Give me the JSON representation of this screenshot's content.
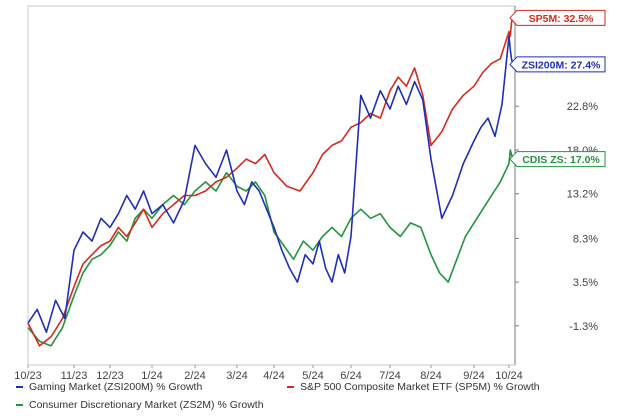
{
  "chart_data": {
    "type": "line",
    "title": "",
    "xlabel": "",
    "ylabel": "",
    "x_labels": [
      "10/23",
      "11/23",
      "12/23",
      "1/24",
      "2/24",
      "3/24",
      "4/24",
      "5/24",
      "6/24",
      "7/24",
      "8/24",
      "9/24",
      "10/24"
    ],
    "y_ticks": [
      -1.3,
      3.5,
      8.3,
      13.2,
      18.0,
      22.8
    ],
    "y_tick_labels": [
      "-1.3%",
      "3.5%",
      "8.3%",
      "13.2%",
      "18.0%",
      "22.8%"
    ],
    "ylim": [
      -5.6,
      33.8
    ],
    "grid": false,
    "legend_position": "bottom",
    "series": [
      {
        "name": "Gaming Market (ZSI200M) % Growth",
        "key": "ZSI200M",
        "end_label": "ZSI200M: 27.4%",
        "color": "#1f2fb5",
        "points": [
          [
            "10/23",
            -1.0
          ],
          [
            "10/23",
            0.5
          ],
          [
            "10/23",
            -2.0
          ],
          [
            "10/23",
            1.5
          ],
          [
            "10/23",
            -0.5
          ],
          [
            "11/23",
            7.0
          ],
          [
            "11/23",
            9.0
          ],
          [
            "11/23",
            8.0
          ],
          [
            "11/23",
            10.5
          ],
          [
            "12/23",
            9.5
          ],
          [
            "12/23",
            11.0
          ],
          [
            "12/23",
            13.0
          ],
          [
            "12/23",
            11.5
          ],
          [
            "12/23",
            13.5
          ],
          [
            "1/24",
            11.0
          ],
          [
            "1/24",
            12.0
          ],
          [
            "1/24",
            10.0
          ],
          [
            "1/24",
            12.5
          ],
          [
            "2/24",
            18.5
          ],
          [
            "2/24",
            16.5
          ],
          [
            "2/24",
            15.0
          ],
          [
            "2/24",
            18.0
          ],
          [
            "3/24",
            13.5
          ],
          [
            "3/24",
            12.0
          ],
          [
            "3/24",
            14.5
          ],
          [
            "3/24",
            13.5
          ],
          [
            "3/24",
            11.5
          ],
          [
            "4/24",
            9.5
          ],
          [
            "4/24",
            7.0
          ],
          [
            "4/24",
            5.0
          ],
          [
            "4/24",
            3.5
          ],
          [
            "4/24",
            6.5
          ],
          [
            "5/24",
            5.5
          ],
          [
            "5/24",
            8.0
          ],
          [
            "5/24",
            5.0
          ],
          [
            "5/24",
            3.5
          ],
          [
            "5/24",
            6.5
          ],
          [
            "5/24",
            4.5
          ],
          [
            "6/24",
            8.5
          ],
          [
            "6/24",
            24.0
          ],
          [
            "6/24",
            21.5
          ],
          [
            "6/24",
            24.5
          ],
          [
            "7/24",
            22.5
          ],
          [
            "7/24",
            25.0
          ],
          [
            "7/24",
            23.0
          ],
          [
            "7/24",
            25.5
          ],
          [
            "7/24",
            23.5
          ],
          [
            "8/24",
            17.0
          ],
          [
            "8/24",
            10.5
          ],
          [
            "8/24",
            13.0
          ],
          [
            "8/24",
            16.5
          ],
          [
            "9/24",
            19.0
          ],
          [
            "9/24",
            20.5
          ],
          [
            "9/24",
            21.5
          ],
          [
            "9/24",
            19.5
          ],
          [
            "9/24",
            23.0
          ],
          [
            "10/24",
            30.5
          ],
          [
            "10/24",
            29.0
          ],
          [
            "10/24",
            28.0
          ],
          [
            "10/24",
            27.4
          ]
        ]
      },
      {
        "name": "S&P 500 Composite Market ETF (SP5M) % Growth",
        "key": "SP5M",
        "end_label": "SP5M: 32.5%",
        "color": "#d42a1f",
        "points": [
          [
            "10/23",
            -1.0
          ],
          [
            "10/23",
            -3.5
          ],
          [
            "10/23",
            -2.5
          ],
          [
            "10/23",
            -0.5
          ],
          [
            "11/23",
            3.0
          ],
          [
            "11/23",
            5.5
          ],
          [
            "11/23",
            6.5
          ],
          [
            "11/23",
            7.5
          ],
          [
            "12/23",
            8.0
          ],
          [
            "12/23",
            9.5
          ],
          [
            "12/23",
            8.5
          ],
          [
            "12/23",
            10.0
          ],
          [
            "12/23",
            11.5
          ],
          [
            "1/24",
            9.5
          ],
          [
            "1/24",
            11.0
          ],
          [
            "1/24",
            12.0
          ],
          [
            "1/24",
            13.0
          ],
          [
            "2/24",
            13.0
          ],
          [
            "2/24",
            13.5
          ],
          [
            "2/24",
            14.5
          ],
          [
            "2/24",
            15.0
          ],
          [
            "3/24",
            16.0
          ],
          [
            "3/24",
            17.0
          ],
          [
            "3/24",
            16.5
          ],
          [
            "3/24",
            17.5
          ],
          [
            "4/24",
            15.5
          ],
          [
            "4/24",
            14.0
          ],
          [
            "4/24",
            13.5
          ],
          [
            "5/24",
            15.5
          ],
          [
            "5/24",
            17.5
          ],
          [
            "5/24",
            18.5
          ],
          [
            "5/24",
            19.0
          ],
          [
            "6/24",
            20.5
          ],
          [
            "6/24",
            21.0
          ],
          [
            "6/24",
            22.0
          ],
          [
            "6/24",
            21.5
          ],
          [
            "7/24",
            24.5
          ],
          [
            "7/24",
            26.0
          ],
          [
            "7/24",
            25.0
          ],
          [
            "7/24",
            27.0
          ],
          [
            "7/24",
            24.0
          ],
          [
            "8/24",
            18.5
          ],
          [
            "8/24",
            20.0
          ],
          [
            "8/24",
            22.5
          ],
          [
            "8/24",
            24.0
          ],
          [
            "9/24",
            25.0
          ],
          [
            "9/24",
            26.5
          ],
          [
            "9/24",
            27.5
          ],
          [
            "9/24",
            28.0
          ],
          [
            "10/24",
            31.0
          ],
          [
            "10/24",
            30.5
          ],
          [
            "10/24",
            32.0
          ],
          [
            "10/24",
            32.5
          ]
        ]
      },
      {
        "name": "Consumer Discretionary Market (ZS2M) % Growth",
        "key": "ZS2M",
        "end_label": "CDIS ZS: 17.0%",
        "color": "#23943f",
        "points": [
          [
            "10/23",
            -1.5
          ],
          [
            "10/23",
            -3.0
          ],
          [
            "10/23",
            -3.5
          ],
          [
            "10/23",
            -1.5
          ],
          [
            "11/23",
            2.0
          ],
          [
            "11/23",
            4.5
          ],
          [
            "11/23",
            6.0
          ],
          [
            "11/23",
            6.5
          ],
          [
            "12/23",
            7.5
          ],
          [
            "12/23",
            9.0
          ],
          [
            "12/23",
            8.0
          ],
          [
            "12/23",
            10.5
          ],
          [
            "12/23",
            11.5
          ],
          [
            "1/24",
            10.5
          ],
          [
            "1/24",
            12.0
          ],
          [
            "1/24",
            13.0
          ],
          [
            "1/24",
            12.0
          ],
          [
            "2/24",
            13.5
          ],
          [
            "2/24",
            14.5
          ],
          [
            "2/24",
            13.5
          ],
          [
            "2/24",
            15.5
          ],
          [
            "3/24",
            14.0
          ],
          [
            "3/24",
            13.5
          ],
          [
            "3/24",
            14.5
          ],
          [
            "3/24",
            13.0
          ],
          [
            "4/24",
            9.0
          ],
          [
            "4/24",
            7.5
          ],
          [
            "4/24",
            6.0
          ],
          [
            "4/24",
            8.0
          ],
          [
            "5/24",
            7.0
          ],
          [
            "5/24",
            8.5
          ],
          [
            "5/24",
            9.5
          ],
          [
            "5/24",
            8.5
          ],
          [
            "6/24",
            10.5
          ],
          [
            "6/24",
            11.5
          ],
          [
            "6/24",
            10.5
          ],
          [
            "6/24",
            11.0
          ],
          [
            "7/24",
            9.5
          ],
          [
            "7/24",
            8.5
          ],
          [
            "7/24",
            10.0
          ],
          [
            "7/24",
            9.5
          ],
          [
            "8/24",
            6.5
          ],
          [
            "8/24",
            4.5
          ],
          [
            "8/24",
            3.5
          ],
          [
            "8/24",
            6.0
          ],
          [
            "8/24",
            8.5
          ],
          [
            "9/24",
            10.0
          ],
          [
            "9/24",
            11.5
          ],
          [
            "9/24",
            13.0
          ],
          [
            "9/24",
            14.5
          ],
          [
            "10/24",
            16.5
          ],
          [
            "10/24",
            18.0
          ],
          [
            "10/24",
            17.5
          ],
          [
            "10/24",
            17.0
          ]
        ]
      }
    ]
  }
}
